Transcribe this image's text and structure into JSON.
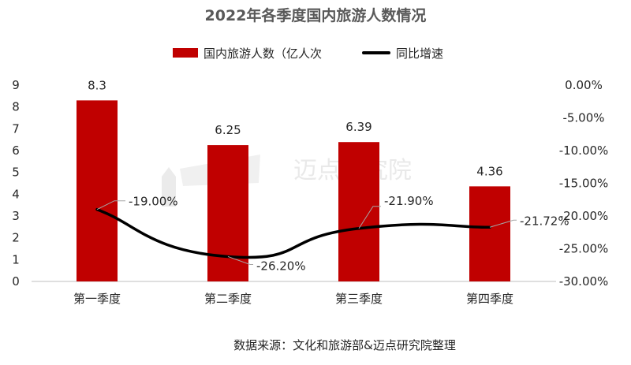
{
  "chart_data": {
    "type": "bar",
    "title": "2022年各季度国内旅游人数情况",
    "categories": [
      "第一季度",
      "第二季度",
      "第三季度",
      "第四季度"
    ],
    "series": [
      {
        "name": "国内旅游人数（亿人次",
        "kind": "bar",
        "axis": "left",
        "values": [
          8.3,
          6.25,
          6.39,
          4.36
        ],
        "labels": [
          "8.3",
          "6.25",
          "6.39",
          "4.36"
        ],
        "color": "#c00000"
      },
      {
        "name": "同比增速",
        "kind": "line",
        "axis": "right",
        "values": [
          -19.0,
          -26.2,
          -21.9,
          -21.72
        ],
        "labels": [
          "-19.00%",
          "-26.20%",
          "-21.90%",
          "-21.72%"
        ],
        "color": "#000000"
      }
    ],
    "y_left": {
      "ylim": [
        0,
        9
      ],
      "ticks": [
        "0",
        "1",
        "2",
        "3",
        "4",
        "5",
        "6",
        "7",
        "8",
        "9"
      ]
    },
    "y_right": {
      "ylim": [
        -30,
        0
      ],
      "ticks": [
        "0.00%",
        "-5.00%",
        "-10.00%",
        "-15.00%",
        "-20.00%",
        "-25.00%",
        "-30.00%"
      ]
    },
    "legend": "top-center",
    "grid": false,
    "watermark": "迈点研究院",
    "source": "数据来源：文化和旅游部&迈点研究院整理"
  }
}
